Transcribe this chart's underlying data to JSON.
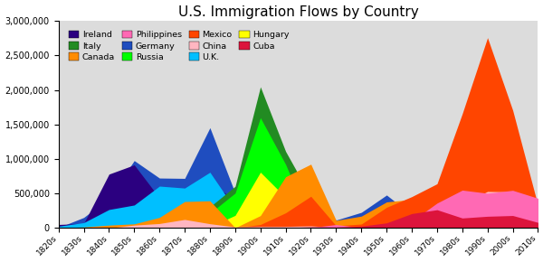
{
  "title": "U.S. Immigration Flows by Country",
  "decades": [
    "1820s",
    "1830s",
    "1840s",
    "1850s",
    "1860s",
    "1870s",
    "1880s",
    "1890s",
    "1900s",
    "1910s",
    "1920s",
    "1930s",
    "1940s",
    "1950s",
    "1960s",
    "1970s",
    "1980s",
    "1990s",
    "2000s",
    "2010s"
  ],
  "series_draw_order": [
    {
      "name": "Germany",
      "color": "#1f4dbf",
      "values": [
        6000,
        152000,
        434000,
        976000,
        723000,
        718000,
        1452000,
        505000,
        341000,
        144000,
        412000,
        114000,
        226000,
        477000,
        190000,
        74000,
        91000,
        92000,
        45000,
        20000
      ]
    },
    {
      "name": "Ireland",
      "color": "#2b0080",
      "values": [
        50000,
        65000,
        780000,
        914000,
        435000,
        436000,
        655000,
        405000,
        340000,
        146000,
        220000,
        13000,
        26000,
        57000,
        37000,
        11000,
        31000,
        56000,
        23000,
        14000
      ]
    },
    {
      "name": "U.K.",
      "color": "#00bfff",
      "values": [
        25000,
        77000,
        267000,
        332000,
        606000,
        578000,
        807000,
        271000,
        476000,
        341000,
        341000,
        31000,
        131000,
        202000,
        213000,
        137000,
        159000,
        156000,
        159000,
        90000
      ]
    },
    {
      "name": "Italy",
      "color": "#228b22",
      "values": [
        0,
        2000,
        1900,
        9000,
        12000,
        56000,
        307000,
        603000,
        2045000,
        1109000,
        455000,
        68000,
        57000,
        185000,
        214000,
        130000,
        32000,
        73000,
        20000,
        15000
      ]
    },
    {
      "name": "Russia",
      "color": "#00ff00",
      "values": [
        0,
        0,
        1000,
        1000,
        2500,
        39000,
        213000,
        505000,
        1597000,
        921000,
        62000,
        1500,
        571,
        671,
        2465,
        38961,
        57000,
        433000,
        167000,
        100000
      ]
    },
    {
      "name": "Hungary",
      "color": "#ffff00",
      "values": [
        0,
        0,
        0,
        0,
        0,
        0,
        16000,
        182000,
        808000,
        442000,
        30000,
        6000,
        3000,
        36000,
        5000,
        6000,
        6000,
        8000,
        9000,
        8000
      ]
    },
    {
      "name": "Canada",
      "color": "#ff8c00",
      "values": [
        2500,
        14000,
        41000,
        59000,
        153000,
        383000,
        393000,
        3000,
        179000,
        742000,
        924000,
        109000,
        171000,
        377000,
        413000,
        169000,
        156000,
        194000,
        262000,
        270000
      ]
    },
    {
      "name": "Mexico",
      "color": "#ff4500",
      "values": [
        4600,
        6599,
        3271,
        3078,
        2000,
        5162,
        1224,
        971,
        49642,
        219000,
        459000,
        32000,
        56000,
        299000,
        453900,
        640300,
        1656000,
        2757000,
        1704000,
        325000
      ]
    },
    {
      "name": "China",
      "color": "#ffb6c1",
      "values": [
        0,
        0,
        0,
        41000,
        64000,
        123000,
        61000,
        15000,
        21000,
        22000,
        30000,
        6000,
        16000,
        10000,
        110000,
        124000,
        347000,
        529000,
        524000,
        416000
      ]
    },
    {
      "name": "Philippines",
      "color": "#ff69b4",
      "values": [
        0,
        0,
        0,
        0,
        0,
        0,
        0,
        0,
        0,
        0,
        5603,
        49000,
        4691,
        19000,
        98000,
        360000,
        548000,
        503000,
        545000,
        430000
      ]
    },
    {
      "name": "Cuba",
      "color": "#dc143c",
      "values": [
        0,
        0,
        0,
        0,
        0,
        0,
        0,
        0,
        0,
        4000,
        15000,
        12000,
        26000,
        73000,
        208000,
        264000,
        144000,
        169000,
        180000,
        80000
      ]
    }
  ],
  "legend_order": [
    "Ireland",
    "Italy",
    "Canada",
    "Philippines",
    "Germany",
    "Russia",
    "Mexico",
    "China",
    "U.K.",
    "Hungary",
    "Cuba"
  ],
  "legend_colors": {
    "Ireland": "#2b0080",
    "Germany": "#1f4dbf",
    "U.K.": "#00bfff",
    "Italy": "#228b22",
    "Russia": "#00ff00",
    "Hungary": "#ffff00",
    "Canada": "#ff8c00",
    "Mexico": "#ff4500",
    "Cuba": "#dc143c",
    "Philippines": "#ff69b4",
    "China": "#ffb6c1"
  },
  "ylim": [
    0,
    3000000
  ],
  "bg_color": "#dcdcdc",
  "fig_bg": "#ffffff"
}
